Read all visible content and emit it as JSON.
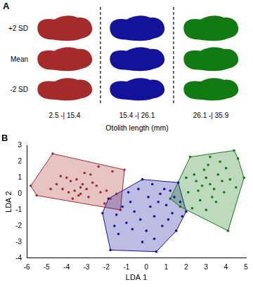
{
  "panel_a": {
    "label": "A",
    "rows": [
      "+2 SD",
      "Mean",
      "-2 SD"
    ],
    "columns": [
      {
        "label": "2.5 -| 15.4",
        "color": "#a52a2a"
      },
      {
        "label": "15.4 -| 26.1",
        "color": "#12129a"
      },
      {
        "label": "26.1 -| 35.9",
        "color": "#127a12"
      }
    ],
    "xlabel": "Otolith length (mm)"
  },
  "chart_data": {
    "type": "scatter",
    "title": "B",
    "xlabel": "LDA 1",
    "ylabel": "LDA 2",
    "xlim": [
      -6,
      5
    ],
    "xticks": [
      -6,
      -5,
      -4,
      -3,
      -2,
      -1,
      0,
      1,
      2,
      3,
      4,
      5
    ],
    "ylim": [
      -4,
      3
    ],
    "yticks": [
      -4,
      -3,
      -2,
      -1,
      0,
      1,
      2,
      3
    ],
    "grid": false,
    "series": [
      {
        "color": "#a52a2a",
        "x": [
          -4.7,
          -5.8,
          -5.5,
          -1.3,
          -1.1,
          -4.0,
          -3.8,
          -3.5,
          -3.2,
          -4.2,
          -3.9,
          -3.6,
          -3.3,
          -3.0,
          -2.8,
          -2.5,
          -2.3,
          -2.0,
          -1.7,
          -1.8,
          -4.5,
          -4.3,
          -3.7,
          -3.4,
          -2.9,
          -2.7,
          -2.4,
          -3.1,
          -3.3,
          -4.8,
          -1.5,
          -2.1
        ],
        "values": [
          2.5,
          0.5,
          -0.1,
          -1.0,
          1.5,
          1.0,
          0.8,
          0.9,
          0.6,
          0.3,
          0.1,
          0.2,
          0.4,
          0.3,
          1.2,
          0.5,
          0.1,
          0.2,
          1.4,
          -0.3,
          0.6,
          1.1,
          -0.3,
          -0.1,
          -0.2,
          0.7,
          1.7,
          1.3,
          0.0,
          0.3,
          0.0,
          -0.6
        ]
      },
      {
        "color": "#12129a",
        "x": [
          -0.2,
          1.6,
          2.0,
          1.5,
          0.5,
          -1.8,
          -2.2,
          -1.9,
          -0.4,
          0.3,
          1.2,
          0.9,
          1.4,
          0.1,
          -0.8,
          -1.2,
          -1.5,
          -0.6,
          0.2,
          0.6,
          1.0,
          1.3,
          0.4,
          -0.3,
          -1.0,
          -1.4,
          -0.7,
          0.0,
          0.8,
          1.1,
          -0.2,
          0.4,
          1.7,
          -0.9,
          -1.6,
          0.7,
          1.8
        ],
        "values": [
          0.9,
          0.7,
          -1.1,
          -2.3,
          -3.6,
          -3.5,
          -1.2,
          -0.3,
          0.3,
          0.6,
          0.2,
          0.3,
          -0.2,
          -0.2,
          -0.5,
          -0.8,
          -1.3,
          -1.1,
          -0.8,
          -0.5,
          -0.7,
          -1.2,
          -1.4,
          -1.6,
          -1.8,
          -2.5,
          -2.2,
          -2.3,
          -2.0,
          -1.6,
          -3.0,
          -2.8,
          -0.5,
          0.1,
          -2.0,
          0.0,
          -1.4
        ]
      },
      {
        "color": "#127a12",
        "x": [
          1.2,
          2.2,
          4.4,
          4.9,
          4.1,
          1.7,
          2.5,
          2.8,
          3.0,
          3.2,
          2.6,
          3.4,
          3.6,
          3.8,
          2.9,
          3.1,
          2.4,
          2.1,
          3.3,
          3.5,
          2.7,
          3.9,
          4.2,
          4.0,
          3.7,
          2.0,
          3.0,
          4.6,
          4.5,
          2.3,
          3.2
        ],
        "values": [
          -0.3,
          2.3,
          2.7,
          1.0,
          -2.3,
          -0.8,
          0.8,
          0.5,
          1.0,
          0.6,
          0.2,
          0.3,
          1.2,
          0.8,
          1.5,
          1.8,
          1.2,
          0.1,
          -0.2,
          -0.5,
          -0.4,
          0.1,
          0.9,
          1.6,
          2.0,
          1.0,
          -1.0,
          2.2,
          0.4,
          -0.9,
          2.3
        ]
      }
    ]
  }
}
